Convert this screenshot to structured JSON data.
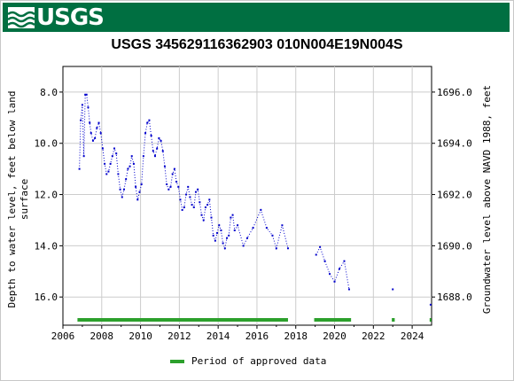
{
  "header": {
    "logo_text": "USGS"
  },
  "chart_data": {
    "type": "scatter",
    "title": "USGS 345629116362903 010N004E19N004S",
    "ylabel_left": "Depth to water level, feet below land surface",
    "ylabel_left_lines": [
      "Depth to water level, feet below land",
      "surface"
    ],
    "ylabel_right": "Groundwater level above NAVD 1988, feet",
    "xlim": [
      2006,
      2025
    ],
    "ylim_left": [
      17.1,
      7.0
    ],
    "ylim_right": [
      1686.9,
      1697.0
    ],
    "x_ticks": [
      2006,
      2008,
      2010,
      2012,
      2014,
      2016,
      2018,
      2020,
      2022,
      2024
    ],
    "x_tick_labels": [
      "2006",
      "2008",
      "2010",
      "2012",
      "2014",
      "2016",
      "2018",
      "2020",
      "2022",
      "2024"
    ],
    "y_left_ticks": [
      8,
      10,
      12,
      14,
      16
    ],
    "y_left_tick_labels": [
      "8.0",
      "10.0",
      "12.0",
      "14.0",
      "16.0"
    ],
    "y_right_ticks": [
      1688,
      1690,
      1692,
      1694,
      1696
    ],
    "y_right_tick_labels": [
      "1688.0",
      "1690.0",
      "1692.0",
      "1694.0",
      "1696.0"
    ],
    "grid": true,
    "series": [
      {
        "color": "#0000cc",
        "style": "dotted-line-with-markers",
        "segments": [
          {
            "x": [
              2006.85,
              2006.92,
              2007.0,
              2007.08,
              2007.15,
              2007.22,
              2007.3,
              2007.38,
              2007.45,
              2007.55,
              2007.65,
              2007.75,
              2007.85,
              2007.95,
              2008.05,
              2008.15,
              2008.25,
              2008.35,
              2008.45,
              2008.55,
              2008.65,
              2008.75,
              2008.85,
              2008.95,
              2009.05,
              2009.15,
              2009.25,
              2009.35,
              2009.45,
              2009.55,
              2009.65,
              2009.75,
              2009.85,
              2009.95,
              2010.05,
              2010.15,
              2010.25,
              2010.35,
              2010.45,
              2010.55,
              2010.65,
              2010.75,
              2010.85,
              2010.95,
              2011.05,
              2011.15,
              2011.25,
              2011.35,
              2011.45,
              2011.55,
              2011.65,
              2011.75,
              2011.85,
              2011.95,
              2012.05,
              2012.15,
              2012.25,
              2012.35,
              2012.45,
              2012.55,
              2012.65,
              2012.75,
              2012.85,
              2012.95,
              2013.05,
              2013.15,
              2013.25,
              2013.35,
              2013.45,
              2013.55,
              2013.65,
              2013.75,
              2013.85,
              2013.95,
              2014.05,
              2014.15,
              2014.25,
              2014.35,
              2014.45,
              2014.55,
              2014.65,
              2014.75,
              2014.85,
              2015.0,
              2015.3,
              2015.5,
              2015.8,
              2016.2,
              2016.5,
              2016.8,
              2017.0,
              2017.3,
              2017.6
            ],
            "y": [
              11.0,
              9.1,
              8.5,
              10.5,
              8.1,
              8.1,
              8.6,
              9.2,
              9.6,
              9.9,
              9.8,
              9.4,
              9.2,
              9.6,
              10.2,
              10.8,
              11.2,
              11.1,
              10.8,
              10.5,
              10.2,
              10.4,
              11.2,
              11.8,
              12.1,
              11.8,
              11.4,
              11.0,
              10.9,
              10.5,
              10.8,
              11.7,
              12.2,
              11.9,
              11.6,
              10.5,
              9.6,
              9.2,
              9.1,
              9.7,
              10.3,
              10.5,
              10.2,
              9.8,
              9.9,
              10.3,
              10.9,
              11.6,
              11.8,
              11.7,
              11.2,
              11.0,
              11.5,
              11.7,
              12.2,
              12.6,
              12.5,
              12.0,
              11.7,
              12.1,
              12.4,
              12.5,
              11.9,
              11.8,
              12.3,
              12.8,
              13.0,
              12.5,
              12.4,
              12.2,
              12.9,
              13.6,
              13.8,
              13.5,
              13.2,
              13.4,
              13.9,
              14.1,
              13.7,
              13.6,
              12.9,
              12.8,
              13.4,
              13.2,
              14.0,
              13.7,
              13.3,
              12.6,
              13.3,
              13.6,
              14.1,
              13.2,
              14.1
            ]
          },
          {
            "x": [
              2019.05,
              2019.25,
              2019.5,
              2019.75,
              2020.0,
              2020.25,
              2020.5,
              2020.75
            ],
            "y": [
              14.35,
              14.05,
              14.6,
              15.1,
              15.4,
              14.9,
              14.6,
              15.7
            ]
          },
          {
            "x": [
              2023.0
            ],
            "y": [
              15.7
            ]
          },
          {
            "x": [
              2024.95
            ],
            "y": [
              16.3
            ]
          }
        ]
      }
    ],
    "approved_periods": [
      [
        2006.75,
        2017.6
      ],
      [
        2018.95,
        2020.85
      ],
      [
        2022.95,
        2023.1
      ],
      [
        2024.9,
        2025.0
      ]
    ],
    "legend": {
      "label": "Period of approved data",
      "color": "#2ca02c",
      "placement": "bottom-center"
    }
  }
}
